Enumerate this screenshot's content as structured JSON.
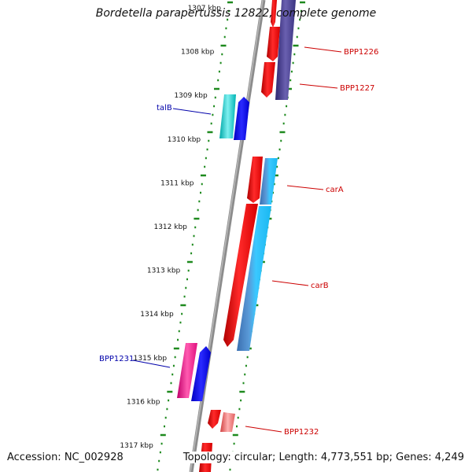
{
  "title": "Bordetella parapertussis 12822, complete genome",
  "footer": {
    "accession": "Accession: NC_002928",
    "summary": "Topology: circular; Length: 4,773,551 bp; Genes: 4,249"
  },
  "colors": {
    "backbone": "#8c8c8c",
    "ticks": "#1e8a1e",
    "label_forward": "#0000aa",
    "label_reverse": "#cc0000"
  },
  "ruler": {
    "labels": [
      "1307 kbp",
      "1308 kbp",
      "1309 kbp",
      "1310 kbp",
      "1311 kbp",
      "1312 kbp",
      "1313 kbp",
      "1314 kbp",
      "1315 kbp",
      "1316 kbp",
      "1317 kbp"
    ]
  },
  "genes": [
    {
      "name": "BPP1226",
      "strand": "reverse",
      "color": "#4a3f8f",
      "labeled": true
    },
    {
      "name": "BPP1227",
      "strand": "reverse",
      "color": "#ee1111",
      "labeled": true
    },
    {
      "name": "talB",
      "strand": "forward",
      "color": "#11c8c8",
      "labeled": true
    },
    {
      "name": "",
      "strand": "forward",
      "color": "#0000ee",
      "labeled": false
    },
    {
      "name": "carA",
      "strand": "reverse",
      "color": "#ee1111",
      "labeled": true
    },
    {
      "name": "carB",
      "strand": "reverse",
      "color": "#3aa8e8",
      "labeled": true
    },
    {
      "name": "BPP1231",
      "strand": "forward",
      "color": "#ee1493",
      "labeled": true
    },
    {
      "name": "BPP1232",
      "strand": "reverse",
      "color": "#ee1111",
      "labeled": true
    }
  ]
}
